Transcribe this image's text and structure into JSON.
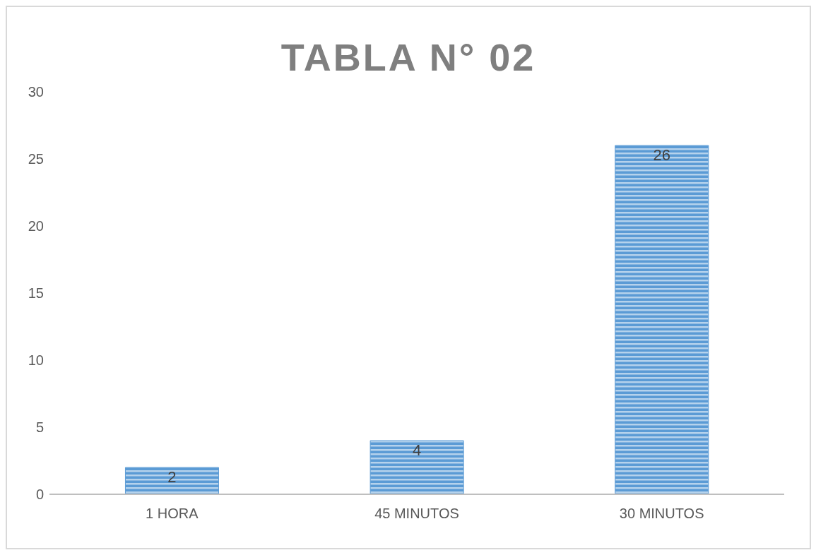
{
  "chart_data": {
    "type": "bar",
    "title": "TABLA N° 02",
    "categories": [
      "1 HORA",
      "45 MINUTOS",
      "30 MINUTOS"
    ],
    "values": [
      2,
      4,
      26
    ],
    "color": "#5b9bd5",
    "ylim": [
      0,
      30
    ],
    "yticks": [
      0,
      5,
      10,
      15,
      20,
      25,
      30
    ],
    "data_labels": true
  }
}
